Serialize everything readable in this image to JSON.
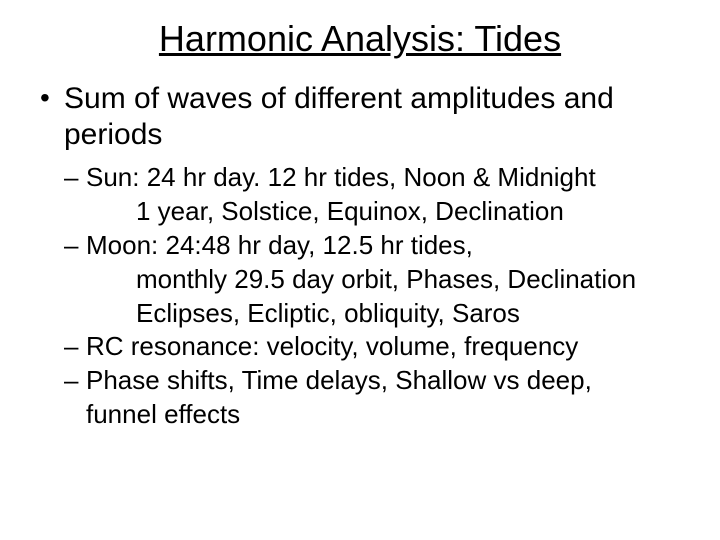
{
  "colors": {
    "background": "#ffffff",
    "text": "#000000"
  },
  "typography": {
    "font_family": "Comic Sans MS",
    "title_fontsize": 36,
    "l1_fontsize": 30,
    "l2_fontsize": 26
  },
  "slide": {
    "title": "Harmonic Analysis: Tides",
    "bullets": {
      "l1": "Sum of waves of different amplitudes and periods",
      "sub": {
        "sun": {
          "line1": "Sun: 24 hr day. 12 hr tides,  Noon & Midnight",
          "line2": "1 year, Solstice, Equinox, Declination"
        },
        "moon": {
          "line1": "Moon: 24:48 hr day, 12.5 hr tides,",
          "line2": "monthly 29.5 day orbit, Phases, Declination",
          "line3": "Eclipses,  Ecliptic, obliquity, Saros"
        },
        "rc": {
          "line1": "RC resonance: velocity, volume, frequency"
        },
        "phase": {
          "line1": "Phase shifts, Time delays, Shallow vs deep,",
          "line2": "funnel effects"
        }
      }
    }
  }
}
